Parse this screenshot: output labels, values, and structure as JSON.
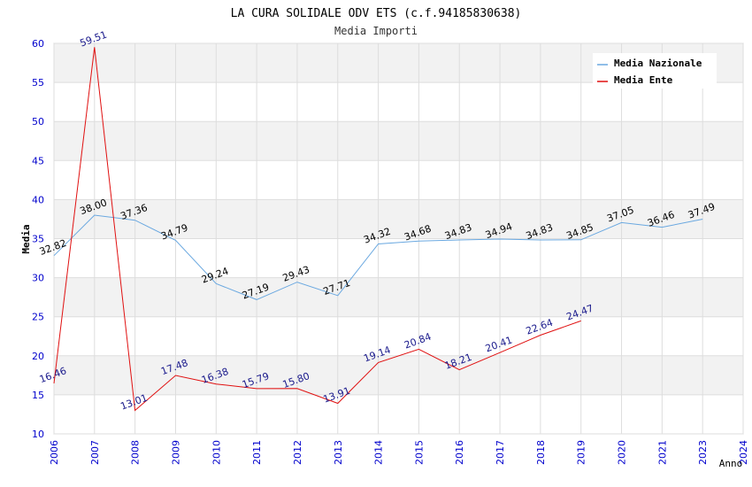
{
  "chart_data": {
    "type": "line",
    "title": "LA CURA SOLIDALE ODV ETS (c.f.94185830638)",
    "subtitle": "Media Importi",
    "xlabel": "Anno",
    "ylabel": "Media",
    "ylim": [
      10,
      60
    ],
    "yticks": [
      "10",
      "15",
      "20",
      "25",
      "30",
      "35",
      "40",
      "45",
      "50",
      "55",
      "60"
    ],
    "x": [
      "2006",
      "2007",
      "2008",
      "2009",
      "2010",
      "2011",
      "2012",
      "2013",
      "2014",
      "2015",
      "2016",
      "2017",
      "2018",
      "2019",
      "2020",
      "2021",
      "2023",
      "2024"
    ],
    "grid": true,
    "legend_position": "top-right",
    "series": [
      {
        "name": "Media Nazionale",
        "color": "#6aa8e0",
        "label_color": "#000000",
        "points": [
          {
            "x": "2006",
            "y": 32.82,
            "label": "32.82"
          },
          {
            "x": "2007",
            "y": 38.0,
            "label": "38.00"
          },
          {
            "x": "2008",
            "y": 37.36,
            "label": "37.36"
          },
          {
            "x": "2009",
            "y": 34.79,
            "label": "34.79"
          },
          {
            "x": "2010",
            "y": 29.24,
            "label": "29.24"
          },
          {
            "x": "2011",
            "y": 27.19,
            "label": "27.19"
          },
          {
            "x": "2012",
            "y": 29.43,
            "label": "29.43"
          },
          {
            "x": "2013",
            "y": 27.71,
            "label": "27.71"
          },
          {
            "x": "2014",
            "y": 34.32,
            "label": "34.32"
          },
          {
            "x": "2015",
            "y": 34.68,
            "label": "34.68"
          },
          {
            "x": "2016",
            "y": 34.83,
            "label": "34.83"
          },
          {
            "x": "2017",
            "y": 34.94,
            "label": "34.94"
          },
          {
            "x": "2018",
            "y": 34.83,
            "label": "34.83"
          },
          {
            "x": "2019",
            "y": 34.85,
            "label": "34.85"
          },
          {
            "x": "2020",
            "y": 37.05,
            "label": "37.05"
          },
          {
            "x": "2021",
            "y": 36.46,
            "label": "36.46"
          },
          {
            "x": "2023",
            "y": 37.49,
            "label": "37.49"
          }
        ]
      },
      {
        "name": "Media Ente",
        "color": "#e01010",
        "label_color": "#1a1a8c",
        "points": [
          {
            "x": "2006",
            "y": 16.46,
            "label": "16.46"
          },
          {
            "x": "2007",
            "y": 59.51,
            "label": "59.51"
          },
          {
            "x": "2008",
            "y": 13.01,
            "label": "13.01"
          },
          {
            "x": "2009",
            "y": 17.48,
            "label": "17.48"
          },
          {
            "x": "2010",
            "y": 16.38,
            "label": "16.38"
          },
          {
            "x": "2011",
            "y": 15.79,
            "label": "15.79"
          },
          {
            "x": "2012",
            "y": 15.8,
            "label": "15.80"
          },
          {
            "x": "2013",
            "y": 13.91,
            "label": "13.91"
          },
          {
            "x": "2014",
            "y": 19.14,
            "label": "19.14"
          },
          {
            "x": "2015",
            "y": 20.84,
            "label": "20.84"
          },
          {
            "x": "2016",
            "y": 18.21,
            "label": "18.21"
          },
          {
            "x": "2017",
            "y": 20.41,
            "label": "20.41"
          },
          {
            "x": "2018",
            "y": 22.64,
            "label": "22.64"
          },
          {
            "x": "2019",
            "y": 24.47,
            "label": "24.47"
          }
        ]
      }
    ]
  },
  "colors": {
    "axis_tick_text": "#0000cc",
    "band": "#f2f2f2",
    "grid": "#dddddd"
  }
}
